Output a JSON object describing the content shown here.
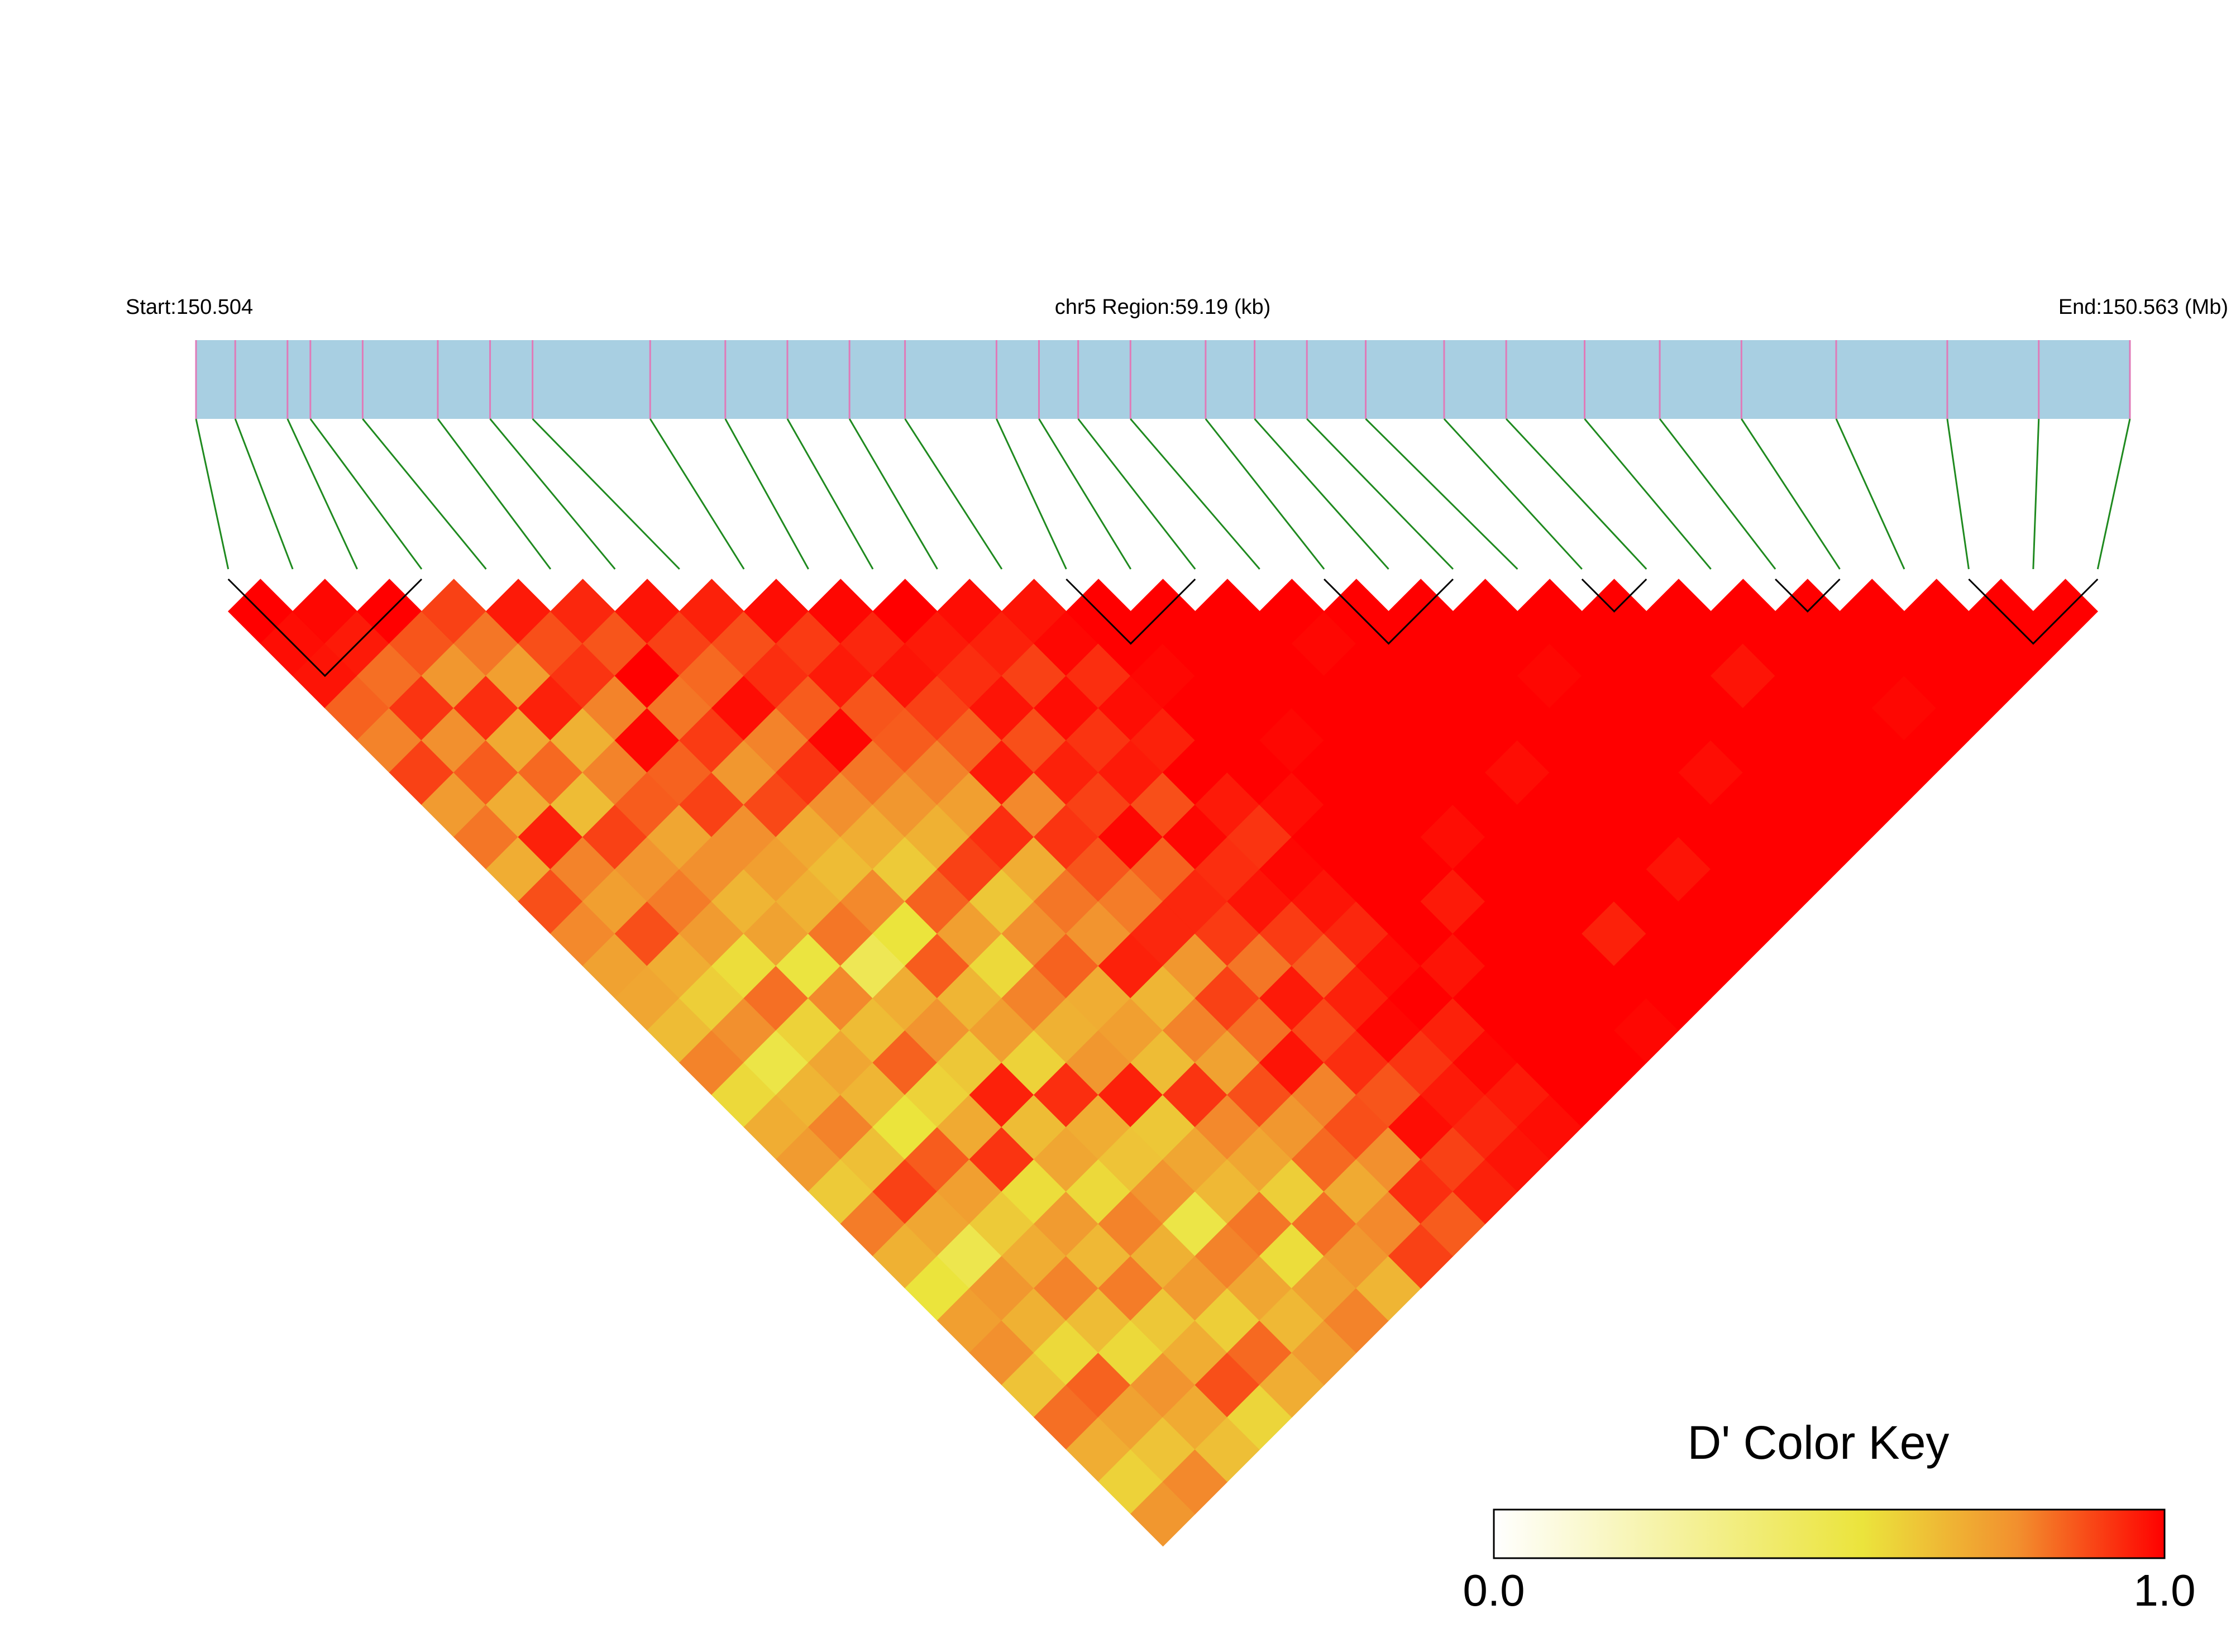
{
  "chart_data": {
    "type": "ld-heatmap",
    "start_label": "Start:150.504",
    "region_label": "chr5 Region:59.19 (kb)",
    "end_label": "End:150.563 (Mb)",
    "xlim": [
      0,
      59.19
    ],
    "snp_positions": [
      0,
      1.2,
      2.8,
      3.5,
      5.1,
      7.4,
      9.0,
      10.3,
      13.9,
      16.2,
      18.1,
      20.0,
      21.7,
      24.5,
      25.8,
      27.0,
      28.6,
      30.9,
      32.4,
      34.0,
      35.8,
      38.2,
      40.1,
      42.5,
      44.8,
      47.3,
      50.2,
      53.6,
      56.4,
      59.19
    ],
    "bar_color": "#a8cfe2",
    "snp_color": "#e07ab8",
    "link_color": "#1f8a1f",
    "dprime": [
      [
        1,
        0.98,
        0.97,
        0.85,
        0.8,
        0.9,
        0.75,
        0.82,
        0.7,
        0.88,
        0.79,
        0.73,
        0.72,
        0.66,
        0.8,
        0.58,
        0.7,
        0.75,
        0.62,
        0.81,
        0.69,
        0.55,
        0.74,
        0.78,
        0.64,
        0.83,
        0.7,
        0.6,
        0.76
      ],
      [
        0.99,
        0.96,
        0.83,
        0.92,
        0.78,
        0.86,
        0.7,
        0.95,
        0.8,
        0.74,
        0.88,
        0.7,
        0.61,
        0.78,
        0.52,
        0.68,
        0.8,
        0.65,
        0.9,
        0.72,
        0.5,
        0.76,
        0.69,
        0.58,
        0.85,
        0.73,
        0.64,
        0.79
      ],
      [
        1,
        0.87,
        0.76,
        0.93,
        0.71,
        0.84,
        0.66,
        0.9,
        0.77,
        0.81,
        0.75,
        0.57,
        0.83,
        0.6,
        0.72,
        0.68,
        0.55,
        0.86,
        0.74,
        0.62,
        0.7,
        0.8,
        0.66,
        0.58,
        0.77,
        0.71,
        0.65
      ],
      [
        0.9,
        0.82,
        0.74,
        0.95,
        0.69,
        0.8,
        0.86,
        0.72,
        0.78,
        0.68,
        0.73,
        0.54,
        0.79,
        0.66,
        0.85,
        0.6,
        0.71,
        0.92,
        0.57,
        0.75,
        0.67,
        0.81,
        0.63,
        0.7,
        0.88,
        0.59
      ],
      [
        0.96,
        0.88,
        0.92,
        0.8,
        0.99,
        0.85,
        0.9,
        0.78,
        0.74,
        0.69,
        0.82,
        0.48,
        0.7,
        0.77,
        0.63,
        0.95,
        0.66,
        0.72,
        0.58,
        0.8,
        0.69,
        0.75,
        0.61,
        0.84,
        0.7
      ],
      [
        0.94,
        0.87,
        1,
        0.82,
        0.91,
        0.76,
        0.89,
        0.71,
        0.66,
        0.79,
        0.55,
        0.86,
        0.68,
        0.74,
        0.6,
        0.93,
        0.7,
        0.64,
        0.77,
        0.52,
        0.8,
        0.72,
        0.67,
        0.75
      ],
      [
        0.97,
        0.9,
        0.84,
        0.98,
        0.8,
        0.92,
        0.78,
        0.7,
        0.62,
        0.85,
        0.74,
        0.58,
        0.8,
        0.69,
        0.76,
        0.95,
        0.63,
        0.72,
        0.67,
        0.82,
        0.57,
        0.73,
        0.8
      ],
      [
        0.95,
        0.88,
        0.93,
        0.86,
        0.99,
        0.82,
        0.76,
        0.69,
        0.9,
        0.63,
        0.78,
        0.85,
        0.7,
        0.74,
        0.66,
        0.92,
        0.79,
        0.72,
        0.61,
        0.83,
        0.76,
        0.68
      ],
      [
        0.98,
        0.91,
        0.96,
        0.87,
        0.86,
        0.8,
        0.74,
        0.93,
        0.7,
        0.82,
        0.77,
        0.95,
        0.68,
        0.8,
        0.73,
        0.88,
        0.76,
        0.84,
        0.71,
        0.79,
        0.9
      ],
      [
        0.99,
        0.94,
        0.97,
        0.9,
        0.85,
        0.96,
        0.79,
        0.92,
        0.87,
        0.81,
        0.94,
        0.76,
        0.9,
        0.83,
        0.97,
        0.8,
        0.88,
        0.78,
        0.93,
        0.86
      ],
      [
        1,
        0.96,
        0.93,
        0.97,
        0.88,
        0.95,
        0.9,
        0.99,
        0.85,
        0.94,
        0.91,
        0.82,
        0.96,
        0.89,
        0.93,
        0.87,
        0.98,
        0.9,
        0.95
      ],
      [
        0.98,
        0.95,
        0.9,
        0.98,
        0.92,
        0.96,
        0.88,
        0.99,
        0.93,
        0.97,
        0.91,
        0.86,
        0.95,
        0.99,
        0.92,
        0.96,
        0.94,
        0.97
      ],
      [
        0.97,
        0.99,
        0.93,
        0.98,
        0.95,
        1,
        0.96,
        0.92,
        0.99,
        0.97,
        0.94,
        0.98,
        1,
        0.95,
        0.99,
        0.96,
        0.98
      ],
      [
        1,
        1,
        0.99,
        1,
        1,
        1,
        0.98,
        1,
        1,
        1,
        1,
        0.97,
        1,
        1,
        1,
        1
      ],
      [
        1,
        1,
        1,
        1,
        0.99,
        1,
        1,
        1,
        1,
        0.96,
        1,
        1,
        1,
        1,
        1
      ],
      [
        1,
        1,
        1,
        1,
        1,
        1,
        1,
        0.98,
        1,
        1,
        1,
        1,
        1,
        0.99
      ],
      [
        1,
        0.99,
        1,
        1,
        1,
        1,
        1,
        1,
        1,
        1,
        0.95,
        1,
        1
      ],
      [
        1,
        1,
        1,
        1,
        1,
        0.98,
        1,
        1,
        1,
        1,
        1,
        1
      ],
      [
        1,
        1,
        1,
        1,
        1,
        1,
        1,
        1,
        0.97,
        1,
        1
      ],
      [
        1,
        1,
        0.99,
        1,
        1,
        1,
        1,
        1,
        1,
        1
      ],
      [
        1,
        1,
        1,
        1,
        1,
        0.98,
        1,
        1,
        1
      ],
      [
        1,
        1,
        1,
        1,
        1,
        1,
        1,
        1
      ],
      [
        1,
        1,
        0.97,
        1,
        1,
        1,
        1
      ],
      [
        1,
        1,
        1,
        1,
        1,
        1
      ],
      [
        1,
        1,
        1,
        0.99,
        1
      ],
      [
        1,
        1,
        1,
        1
      ],
      [
        1,
        1,
        1
      ],
      [
        1,
        1
      ],
      [
        1
      ]
    ],
    "blocks": [
      [
        0,
        3
      ],
      [
        13,
        15
      ],
      [
        17,
        19
      ],
      [
        21,
        22
      ],
      [
        24,
        25
      ],
      [
        27,
        29
      ]
    ],
    "colormap": {
      "stops": [
        0,
        0.55,
        0.78,
        1
      ],
      "colors": [
        "#ffffff",
        "#ebe43c",
        "#f2902e",
        "#ff0000"
      ]
    },
    "key_title": "D' Color Key",
    "key_lim": [
      0,
      1
    ],
    "key_ticks": [
      {
        "value": 0,
        "label": "0.0"
      },
      {
        "value": 1,
        "label": "1.0"
      }
    ]
  }
}
